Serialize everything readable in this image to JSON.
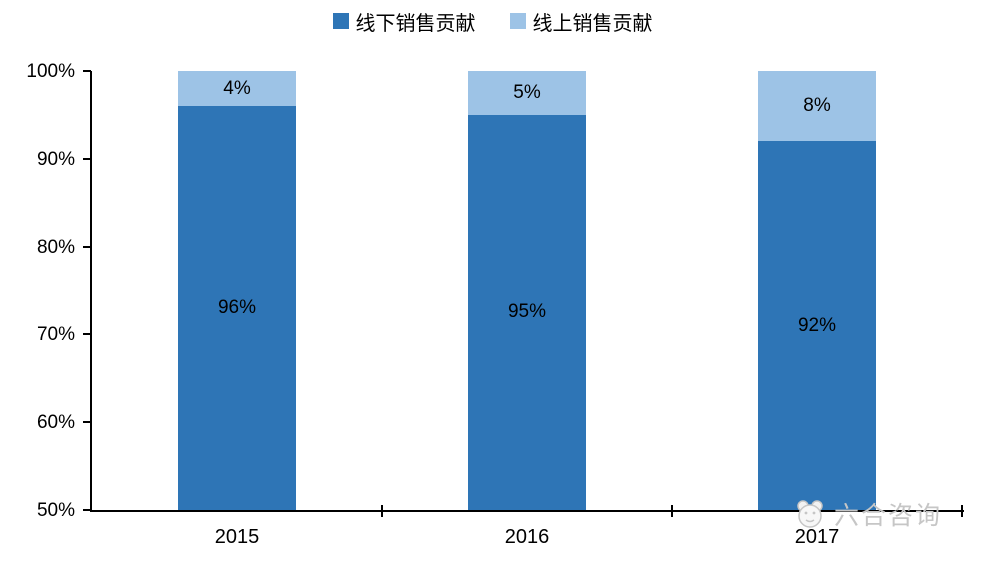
{
  "chart_data": {
    "type": "bar",
    "stacked": true,
    "title": "",
    "xlabel": "",
    "ylabel": "",
    "categories": [
      "2015",
      "2016",
      "2017"
    ],
    "series": [
      {
        "name": "线下销售贡献",
        "color": "#2E75B6",
        "values": [
          96,
          95,
          92
        ],
        "labels": [
          "96%",
          "95%",
          "92%"
        ]
      },
      {
        "name": "线上销售贡献",
        "color": "#9DC3E6",
        "values": [
          4,
          5,
          8
        ],
        "labels": [
          "4%",
          "5%",
          "8%"
        ]
      }
    ],
    "ylim": [
      50,
      100
    ],
    "ytick_values": [
      100,
      90,
      80,
      70,
      60,
      50
    ],
    "ytick_labels": [
      "100%",
      "90%",
      "80%",
      "70%",
      "60%",
      "50%"
    ],
    "grid": false,
    "legend_position": "top",
    "axis_color": "#000000",
    "background": "#ffffff"
  },
  "watermark": {
    "text": "六合咨询"
  }
}
